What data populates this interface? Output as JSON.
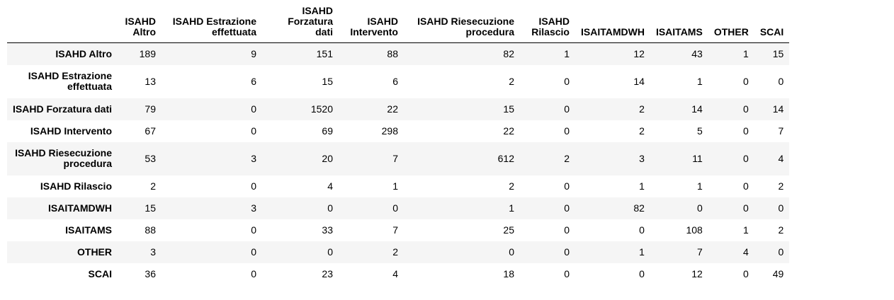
{
  "table": {
    "columns": [
      {
        "line1": "ISAHD",
        "line2": "Altro"
      },
      {
        "line1": "ISAHD Estrazione",
        "line2": "effettuata"
      },
      {
        "line1": "ISAHD",
        "line2": "Forzatura dati"
      },
      {
        "line1": "ISAHD",
        "line2": "Intervento"
      },
      {
        "line1": "ISAHD Riesecuzione",
        "line2": "procedura"
      },
      {
        "line1": "ISAHD",
        "line2": "Rilascio"
      },
      {
        "line1": "ISAITAMDWH",
        "line2": ""
      },
      {
        "line1": "ISAITAMS",
        "line2": ""
      },
      {
        "line1": "OTHER",
        "line2": ""
      },
      {
        "line1": "SCAI",
        "line2": ""
      }
    ],
    "rows": [
      {
        "label_line1": "ISAHD Altro",
        "label_line2": "",
        "values": [
          "189",
          "9",
          "151",
          "88",
          "82",
          "1",
          "12",
          "43",
          "1",
          "15"
        ]
      },
      {
        "label_line1": "ISAHD Estrazione",
        "label_line2": "effettuata",
        "values": [
          "13",
          "6",
          "15",
          "6",
          "2",
          "0",
          "14",
          "1",
          "0",
          "0"
        ]
      },
      {
        "label_line1": "ISAHD Forzatura dati",
        "label_line2": "",
        "values": [
          "79",
          "0",
          "1520",
          "22",
          "15",
          "0",
          "2",
          "14",
          "0",
          "14"
        ]
      },
      {
        "label_line1": "ISAHD Intervento",
        "label_line2": "",
        "values": [
          "67",
          "0",
          "69",
          "298",
          "22",
          "0",
          "2",
          "5",
          "0",
          "7"
        ]
      },
      {
        "label_line1": "ISAHD Riesecuzione",
        "label_line2": "procedura",
        "values": [
          "53",
          "3",
          "20",
          "7",
          "612",
          "2",
          "3",
          "11",
          "0",
          "4"
        ]
      },
      {
        "label_line1": "ISAHD Rilascio",
        "label_line2": "",
        "values": [
          "2",
          "0",
          "4",
          "1",
          "2",
          "0",
          "1",
          "1",
          "0",
          "2"
        ]
      },
      {
        "label_line1": "ISAITAMDWH",
        "label_line2": "",
        "values": [
          "15",
          "3",
          "0",
          "0",
          "1",
          "0",
          "82",
          "0",
          "0",
          "0"
        ]
      },
      {
        "label_line1": "ISAITAMS",
        "label_line2": "",
        "values": [
          "88",
          "0",
          "33",
          "7",
          "25",
          "0",
          "0",
          "108",
          "1",
          "2"
        ]
      },
      {
        "label_line1": "OTHER",
        "label_line2": "",
        "values": [
          "3",
          "0",
          "0",
          "2",
          "0",
          "0",
          "1",
          "7",
          "4",
          "0"
        ]
      },
      {
        "label_line1": "SCAI",
        "label_line2": "",
        "values": [
          "36",
          "0",
          "23",
          "4",
          "18",
          "0",
          "0",
          "12",
          "0",
          "49"
        ]
      }
    ]
  }
}
